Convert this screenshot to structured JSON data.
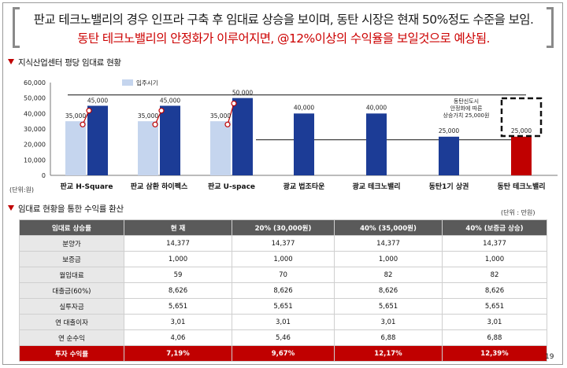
{
  "headline": {
    "line1": "판교 테크노밸리의 경우 인프라 구축 후 임대료 상승을 보이며, 동탄 시장은 현재 50%정도 수준을 보임.",
    "line2": "동탄 테크노밸리의 안정화가 이루어지면, @12%이상의 수익율을 보일것으로 예상됨."
  },
  "chart_section_title": "지식산업센터 평당 임대료 현황",
  "chart_unit_label": "(단위:원)",
  "chart_data": {
    "type": "bar",
    "ylim": [
      0,
      60000
    ],
    "yticks": [
      "0",
      "10,000",
      "20,000",
      "30,000",
      "40,000",
      "50,000",
      "60,000"
    ],
    "legend": "입주시기",
    "categories": [
      "판교 H-Square",
      "판교 삼환 하이펙스",
      "판교 U-space",
      "광교 법조타운",
      "광교 테크노밸리",
      "동탄1기 상권",
      "동탄 테크노밸리"
    ],
    "series": [
      {
        "name": "입주시기",
        "values": [
          35000,
          35000,
          35000,
          null,
          null,
          null,
          null
        ],
        "color": "#c5d5ee"
      },
      {
        "values": [
          45000,
          45000,
          50000,
          40000,
          40000,
          25000,
          25000
        ],
        "colors": [
          "#1c3c96",
          "#1c3c96",
          "#1c3c96",
          "#1c3c96",
          "#1c3c96",
          "#1c3c96",
          "#c00000"
        ]
      }
    ],
    "data_labels_initial": [
      "35,000",
      "35,000",
      "35,000"
    ],
    "data_labels": [
      "45,000",
      "45,000",
      "50,000",
      "40,000",
      "40,000",
      "25,000",
      "25,000"
    ],
    "reference_lines": [
      52000,
      23000
    ],
    "annotation": [
      "동탄신도시",
      "안정화에 따른",
      "상승가치 25,000원"
    ]
  },
  "table_section_title": "임대료 현황을 통한 수익률 환산",
  "table_unit": "(단위 : 만원)",
  "table": {
    "headers": [
      "임대료 상승률",
      "현 재",
      "20% (30,000원)",
      "40% (35,000원)",
      "40% (보증금 상승)"
    ],
    "rows": [
      [
        "분양가",
        "14,377",
        "14,377",
        "14,377",
        "14,377"
      ],
      [
        "보증금",
        "1,000",
        "1,000",
        "1,000",
        "1,000"
      ],
      [
        "월임대료",
        "59",
        "70",
        "82",
        "82"
      ],
      [
        "대출금(60%)",
        "8,626",
        "8,626",
        "8,626",
        "8,626"
      ],
      [
        "실투자금",
        "5,651",
        "5,651",
        "5,651",
        "5,651"
      ],
      [
        "연 대출이자",
        "3,01",
        "3,01",
        "3,01",
        "3,01"
      ],
      [
        "연 순수익",
        "4,06",
        "5,46",
        "6,88",
        "6,88"
      ]
    ],
    "total": [
      "투자 수익률",
      "7,19%",
      "9,67%",
      "12,17%",
      "12,39%"
    ]
  },
  "page_number": "19"
}
